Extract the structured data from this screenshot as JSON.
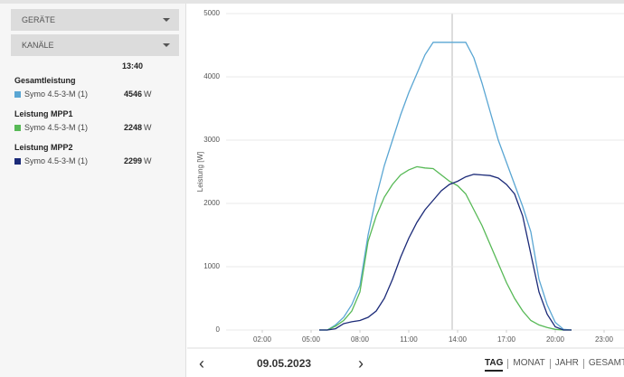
{
  "sidebar": {
    "dropdowns": [
      "GERÄTE",
      "KANÄLE"
    ],
    "time": "13:40",
    "groups": [
      {
        "title": "Gesamtleistung",
        "device": "Symo 4.5-3-M (1)",
        "value": 4546,
        "unit": "W"
      },
      {
        "title": "Leistung MPP1",
        "device": "Symo 4.5-3-M (1)",
        "value": 2248,
        "unit": "W"
      },
      {
        "title": "Leistung MPP2",
        "device": "Symo 4.5-3-M (1)",
        "value": 2299,
        "unit": "W"
      }
    ]
  },
  "chart_data": {
    "type": "line",
    "y_label": "Leistung [W]",
    "x": [
      5.5,
      6,
      6.5,
      7,
      7.5,
      8,
      8.5,
      9,
      9.5,
      10,
      10.5,
      11,
      11.5,
      12,
      12.5,
      13,
      13.5,
      14,
      14.5,
      15,
      15.5,
      16,
      16.5,
      17,
      17.5,
      18,
      18.5,
      19,
      19.5,
      20,
      20.5,
      21
    ],
    "series": [
      {
        "name": "Gesamtleistung",
        "color": "#5aa6d3",
        "values": [
          0,
          0,
          80,
          200,
          400,
          700,
          1500,
          2100,
          2600,
          3000,
          3400,
          3750,
          4050,
          4350,
          4546,
          4546,
          4546,
          4546,
          4546,
          4300,
          3900,
          3450,
          3000,
          2650,
          2300,
          1950,
          1550,
          800,
          400,
          120,
          10,
          0
        ]
      },
      {
        "name": "Leistung MPP1",
        "color": "#57b956",
        "values": [
          0,
          0,
          60,
          150,
          300,
          600,
          1400,
          1800,
          2100,
          2300,
          2450,
          2530,
          2580,
          2560,
          2550,
          2450,
          2350,
          2280,
          2150,
          1900,
          1650,
          1350,
          1050,
          750,
          500,
          300,
          150,
          80,
          40,
          10,
          0,
          0
        ]
      },
      {
        "name": "Leistung MPP2",
        "color": "#1b2a78",
        "values": [
          0,
          0,
          20,
          100,
          130,
          150,
          200,
          300,
          500,
          800,
          1150,
          1450,
          1700,
          1900,
          2050,
          2200,
          2300,
          2350,
          2420,
          2460,
          2450,
          2440,
          2400,
          2300,
          2150,
          1800,
          1200,
          600,
          250,
          50,
          0,
          0
        ]
      }
    ],
    "xlim": [
      0,
      24
    ],
    "xticks": [
      {
        "value": 2,
        "label": "02:00"
      },
      {
        "value": 5,
        "label": "05:00"
      },
      {
        "value": 8,
        "label": "08:00"
      },
      {
        "value": 11,
        "label": "11:00"
      },
      {
        "value": 14,
        "label": "14:00"
      },
      {
        "value": 17,
        "label": "17:00"
      },
      {
        "value": 20,
        "label": "20:00"
      },
      {
        "value": 23,
        "label": "23:00"
      }
    ],
    "ylim": [
      0,
      5000
    ],
    "yticks": [
      0,
      1000,
      2000,
      3000,
      4000,
      5000
    ],
    "grid": true
  },
  "nav": {
    "date": "09.05.2023",
    "prev": "‹",
    "next": "›",
    "tabs": [
      "TAG",
      "MONAT",
      "JAHR",
      "GESAMT"
    ],
    "active_tab": "TAG"
  }
}
